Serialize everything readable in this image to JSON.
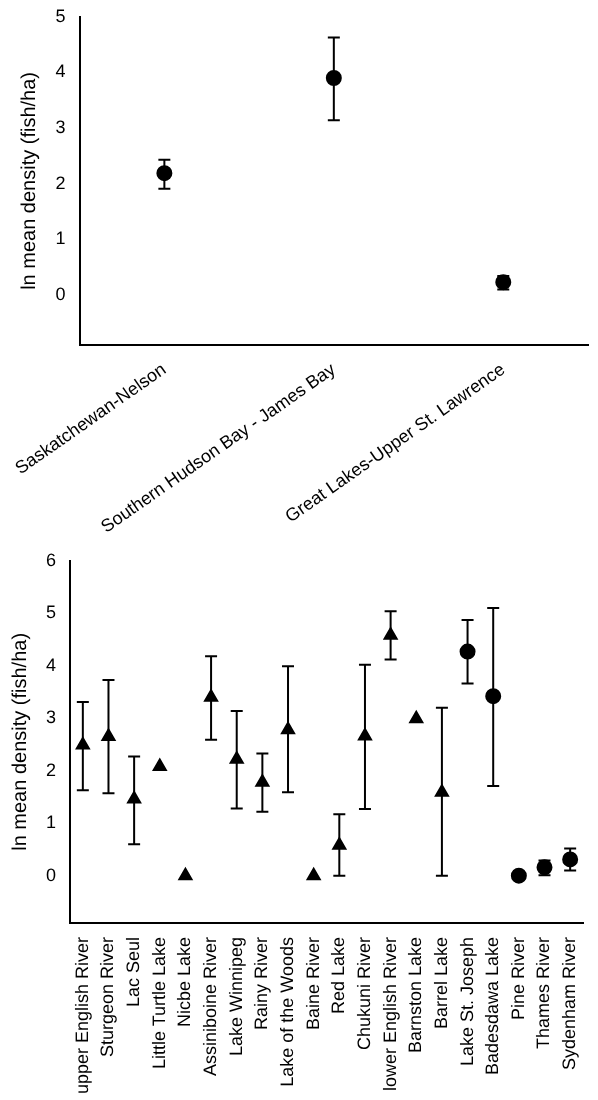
{
  "chart_data": [
    {
      "type": "scatter",
      "ylabel": "ln mean density (fish/ha)",
      "categories": [
        "Saskatchewan-Nelson",
        "Southern Hudson Bay - James Bay",
        "Great Lakes-Upper St. Lawrence"
      ],
      "ylim": [
        -0.9,
        5
      ],
      "yticks": [
        0,
        1,
        2,
        3,
        4,
        5
      ],
      "grid": false,
      "legend": false,
      "marker": "circle",
      "series": [
        {
          "color": "#000000",
          "values": [
            2.19,
            3.9,
            0.23
          ],
          "errors": [
            [
              1.91,
              2.43
            ],
            [
              3.14,
              4.63
            ],
            [
              0.1,
              0.34
            ]
          ]
        }
      ]
    },
    {
      "type": "scatter",
      "ylabel": "ln mean density (fish/ha)",
      "categories": [
        "upper English River",
        "Sturgeon River",
        "Lac Seul",
        "Little Turtle Lake",
        "Nicbe Lake",
        "Assiniboine River",
        "Lake Winnipeg",
        "Rainy River",
        "Lake of the Woods",
        "Baine River",
        "Red Lake",
        "Chukuni River",
        "lower English River",
        "Barnston Lake",
        "Barrel Lake",
        "Lake St. Joseph",
        "Badesdawa Lake",
        "Pine River",
        "Thames River",
        "Sydenham River"
      ],
      "ylim": [
        -0.9,
        6
      ],
      "yticks": [
        0,
        1,
        2,
        3,
        4,
        5,
        6
      ],
      "grid": false,
      "legend": false,
      "series": [
        {
          "color": "#000000",
          "marker": "triangle",
          "values": [
            2.49,
            2.65,
            1.46,
            2.08,
            0,
            3.4,
            2.22,
            1.78,
            2.78,
            0,
            0.58,
            2.66,
            4.58,
            2.99,
            1.59,
            null,
            null,
            null,
            null,
            null
          ],
          "errors": [
            [
              1.63,
              3.31
            ],
            [
              1.57,
              3.73
            ],
            [
              0.6,
              2.27
            ],
            null,
            null,
            [
              2.59,
              4.18
            ],
            [
              1.28,
              3.14
            ],
            [
              1.22,
              2.33
            ],
            [
              1.59,
              3.99
            ],
            null,
            [
              0,
              1.17
            ],
            [
              1.27,
              4.02
            ],
            [
              4.12,
              5.04
            ],
            null,
            [
              0,
              3.2
            ],
            null,
            null,
            null,
            null,
            null
          ]
        },
        {
          "color": "#000000",
          "marker": "circle",
          "values": [
            null,
            null,
            null,
            null,
            null,
            null,
            null,
            null,
            null,
            null,
            null,
            null,
            null,
            null,
            null,
            4.27,
            3.42,
            0,
            0.16,
            0.31
          ],
          "errors": [
            null,
            null,
            null,
            null,
            null,
            null,
            null,
            null,
            null,
            null,
            null,
            null,
            null,
            null,
            null,
            [
              3.66,
              4.87
            ],
            [
              1.71,
              5.1
            ],
            null,
            [
              0.01,
              0.29
            ],
            [
              0.1,
              0.52
            ]
          ]
        }
      ]
    }
  ]
}
